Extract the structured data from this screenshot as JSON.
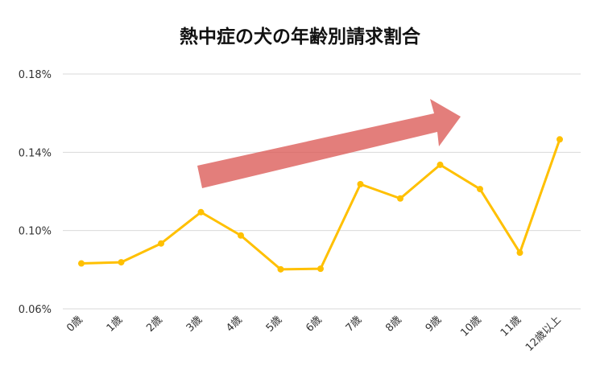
{
  "chart_data": {
    "type": "line",
    "title": "熱中症の犬の年齢別請求割合",
    "categories": [
      "0歳",
      "1歳",
      "2歳",
      "3歳",
      "4歳",
      "5歳",
      "6歳",
      "7歳",
      "8歳",
      "9歳",
      "10歳",
      "11歳",
      "12歳以上"
    ],
    "series": [
      {
        "values": [
          0.0832,
          0.0838,
          0.0934,
          0.1094,
          0.0975,
          0.0802,
          0.0805,
          0.1237,
          0.1164,
          0.1336,
          0.1212,
          0.0887,
          0.1466
        ]
      }
    ],
    "yticks": [
      "0.06%",
      "0.10%",
      "0.14%",
      "0.18%"
    ],
    "ytick_values": [
      0.06,
      0.1,
      0.14,
      0.18
    ],
    "ylim": [
      0.06,
      0.18
    ],
    "xlabel": "",
    "ylabel": "",
    "grid": true,
    "legend": "none",
    "annotation": "upward-trend-arrow",
    "colors": {
      "line": "#FFC000",
      "arrow": "#D9534F",
      "grid": "#D9D9D9"
    }
  }
}
